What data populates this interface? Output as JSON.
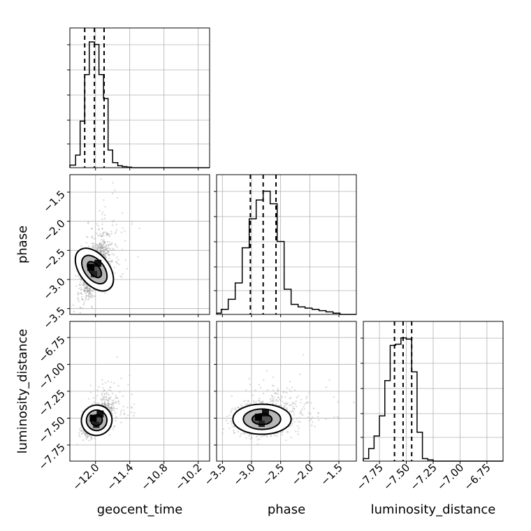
{
  "chart_data": {
    "type": "corner",
    "parameters": [
      "geocent_time",
      "phase",
      "luminosity_distance"
    ],
    "axis_labels": {
      "geocent_time": "geocent_time",
      "phase": "phase",
      "luminosity_distance": "luminosity_distance"
    },
    "ranges": {
      "geocent_time": [
        -12.45,
        -10.0
      ],
      "phase": [
        -3.6,
        -1.2
      ],
      "luminosity_distance": [
        -7.9,
        -6.6
      ]
    },
    "ticks": {
      "geocent_time": [
        -12.0,
        -11.4,
        -10.8,
        -10.2
      ],
      "phase": [
        -3.5,
        -3.0,
        -2.5,
        -2.0,
        -1.5
      ],
      "luminosity_distance": [
        -7.75,
        -7.5,
        -7.25,
        -7.0,
        -6.75
      ]
    },
    "tick_labels": {
      "geocent_time": [
        "−12.0",
        "−11.4",
        "−10.8",
        "−10.2"
      ],
      "phase": [
        "−3.5",
        "−3.0",
        "−2.5",
        "−2.0",
        "−1.5"
      ],
      "luminosity_distance": [
        "−7.75",
        "−7.50",
        "−7.25",
        "−7.00",
        "−6.75"
      ]
    },
    "quantiles": {
      "geocent_time": [
        -12.19,
        -12.02,
        -11.85
      ],
      "phase": [
        -3.02,
        -2.8,
        -2.58
      ],
      "luminosity_distance": [
        -7.61,
        -7.53,
        -7.45
      ]
    },
    "histograms": {
      "geocent_time": {
        "bin_edges": [
          -12.45,
          -12.35,
          -12.27,
          -12.19,
          -12.11,
          -12.02,
          -11.94,
          -11.86,
          -11.78,
          -11.7,
          -11.61,
          -11.53,
          -11.45,
          -11.37,
          -10.0
        ],
        "counts": [
          0.02,
          0.1,
          0.37,
          0.74,
          1.0,
          0.98,
          0.74,
          0.55,
          0.14,
          0.04,
          0.015,
          0.008,
          0.004,
          0.0
        ]
      },
      "phase": {
        "bin_edges": [
          -3.6,
          -3.52,
          -3.4,
          -3.28,
          -3.16,
          -3.04,
          -2.92,
          -2.8,
          -2.68,
          -2.56,
          -2.44,
          -2.32,
          -2.2,
          -2.08,
          -1.96,
          -1.84,
          -1.72,
          -1.6,
          -1.48,
          -1.2
        ],
        "counts": [
          0.01,
          0.04,
          0.12,
          0.25,
          0.53,
          0.76,
          0.91,
          0.98,
          0.88,
          0.58,
          0.2,
          0.08,
          0.06,
          0.05,
          0.04,
          0.03,
          0.02,
          0.01,
          0.0
        ]
      },
      "luminosity_distance": {
        "bin_edges": [
          -7.9,
          -7.85,
          -7.8,
          -7.75,
          -7.7,
          -7.65,
          -7.6,
          -7.55,
          -7.5,
          -7.45,
          -7.4,
          -7.35,
          -7.3,
          -7.25,
          -6.6
        ],
        "counts": [
          0.02,
          0.1,
          0.2,
          0.36,
          0.64,
          0.92,
          0.93,
          0.98,
          0.97,
          0.71,
          0.23,
          0.02,
          0.01,
          0.0
        ]
      }
    },
    "contours": {
      "phase_vs_geocent_time": {
        "center": [
          -12.02,
          -2.83
        ],
        "levels": [
          {
            "rx": 0.26,
            "ry": 0.42,
            "tilt": -38
          },
          {
            "rx": 0.17,
            "ry": 0.28,
            "tilt": -38
          },
          {
            "rx": 0.09,
            "ry": 0.16,
            "tilt": -38
          }
        ]
      },
      "luminosity_distance_vs_geocent_time": {
        "center": [
          -11.98,
          -7.52
        ],
        "levels": [
          {
            "rx": 0.27,
            "ry": 0.14,
            "tilt": -35
          },
          {
            "rx": 0.18,
            "ry": 0.095,
            "tilt": -35
          },
          {
            "rx": 0.1,
            "ry": 0.05,
            "tilt": -35
          }
        ]
      },
      "luminosity_distance_vs_phase": {
        "center": [
          -2.82,
          -7.51
        ],
        "levels": [
          {
            "rx": 0.5,
            "ry": 0.14,
            "tilt": 0
          },
          {
            "rx": 0.32,
            "ry": 0.095,
            "tilt": 0
          },
          {
            "rx": 0.17,
            "ry": 0.05,
            "tilt": 0
          }
        ]
      }
    },
    "grid": true
  }
}
